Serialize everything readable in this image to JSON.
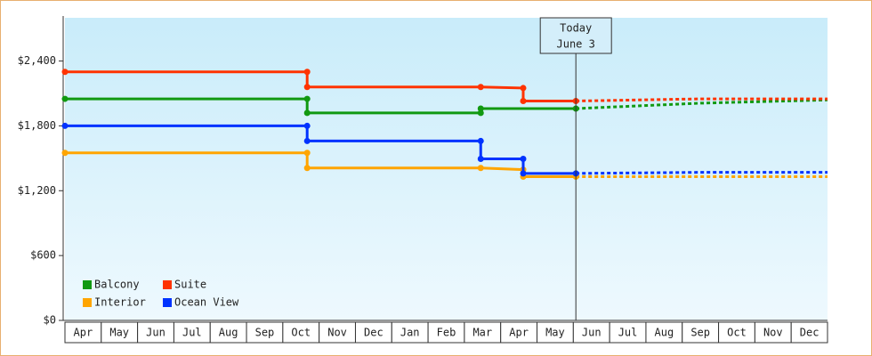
{
  "chart_data": {
    "type": "step-line",
    "categories": [
      "Apr",
      "May",
      "Jun",
      "Jul",
      "Aug",
      "Sep",
      "Oct",
      "Nov",
      "Dec",
      "Jan",
      "Feb",
      "Mar",
      "Apr",
      "May",
      "Jun",
      "Jul",
      "Aug",
      "Sep",
      "Oct",
      "Nov",
      "Dec"
    ],
    "xlim": [
      0,
      21
    ],
    "ylim": [
      0,
      2800
    ],
    "yticks": [
      {
        "value": 0,
        "label": "$0"
      },
      {
        "value": 600,
        "label": "$600"
      },
      {
        "value": 1200,
        "label": "$1,200"
      },
      {
        "value": 1800,
        "label": "$1,800"
      },
      {
        "value": 2400,
        "label": "$2,400"
      }
    ],
    "today": {
      "x": 14.07,
      "label": "Today",
      "date": "June 3"
    },
    "series": [
      {
        "name": "Balcony",
        "color": "#119911",
        "x": [
          0,
          6.67,
          6.67,
          11.45,
          11.45,
          14.07
        ],
        "values": [
          2050,
          2050,
          1920,
          1920,
          1960,
          1960
        ],
        "forecast": {
          "x": [
            14.07,
            17.5,
            21
          ],
          "values": [
            1960,
            2010,
            2040
          ]
        }
      },
      {
        "name": "Suite",
        "color": "#ff3300",
        "x": [
          0,
          6.67,
          6.67,
          11.45,
          12.62,
          12.62,
          14.07
        ],
        "values": [
          2300,
          2300,
          2160,
          2160,
          2150,
          2030,
          2030
        ],
        "forecast": {
          "x": [
            14.07,
            17.5,
            21
          ],
          "values": [
            2030,
            2050,
            2050
          ]
        }
      },
      {
        "name": "Interior",
        "color": "#ffa500",
        "x": [
          0,
          6.67,
          6.67,
          11.45,
          12.62,
          12.62,
          14.07
        ],
        "values": [
          1550,
          1550,
          1410,
          1410,
          1395,
          1330,
          1330
        ],
        "forecast": {
          "x": [
            14.07,
            21
          ],
          "values": [
            1330,
            1330
          ]
        }
      },
      {
        "name": "Ocean View",
        "color": "#0033ff",
        "x": [
          0,
          6.67,
          6.67,
          11.45,
          11.45,
          12.62,
          12.62,
          14.07
        ],
        "values": [
          1800,
          1800,
          1660,
          1660,
          1495,
          1495,
          1360,
          1360
        ],
        "forecast": {
          "x": [
            14.07,
            17.5,
            21
          ],
          "values": [
            1360,
            1370,
            1370
          ]
        }
      }
    ]
  }
}
